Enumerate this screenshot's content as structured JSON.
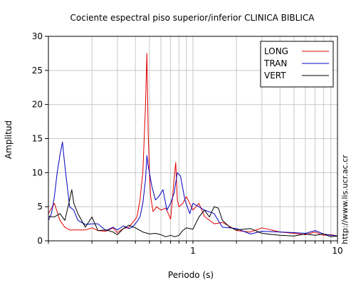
{
  "chart_data": {
    "type": "line",
    "title": "Cociente espectral piso superior/inferior  CLINICA BIBLICA",
    "xlabel": "Periodo (s)",
    "ylabel": "Amplitud",
    "xscale": "log",
    "xlim": [
      0.1,
      10
    ],
    "ylim": [
      0,
      30
    ],
    "x_ticks": [
      1,
      10
    ],
    "x_tick_labels": [
      "1",
      "10"
    ],
    "y_ticks": [
      0,
      5,
      10,
      15,
      20,
      25,
      30
    ],
    "y_tick_labels": [
      "0",
      "5",
      "10",
      "15",
      "20",
      "25",
      "30"
    ],
    "grid": true,
    "legend_position": "top-right",
    "watermark": "http://www.lis.ucr.ac.cr",
    "series": [
      {
        "name": "LONG",
        "color": "#e00000",
        "x": [
          0.1,
          0.11,
          0.12,
          0.13,
          0.14,
          0.16,
          0.18,
          0.2,
          0.22,
          0.25,
          0.28,
          0.3,
          0.33,
          0.36,
          0.38,
          0.41,
          0.43,
          0.45,
          0.47,
          0.48,
          0.49,
          0.5,
          0.51,
          0.53,
          0.56,
          0.6,
          0.65,
          0.7,
          0.74,
          0.76,
          0.78,
          0.8,
          0.85,
          0.9,
          1.0,
          1.1,
          1.2,
          1.4,
          1.6,
          1.8,
          2.0,
          2.5,
          3.0,
          4.0,
          5.0,
          6.0,
          7.0,
          8.0,
          9.0,
          10.0
        ],
        "y": [
          4.0,
          5.5,
          3.0,
          2.0,
          1.6,
          1.6,
          1.6,
          1.9,
          1.5,
          1.4,
          1.9,
          1.2,
          1.8,
          2.0,
          2.6,
          3.5,
          6.0,
          10.0,
          20.0,
          27.5,
          16.0,
          10.0,
          6.5,
          4.3,
          5.0,
          4.5,
          4.8,
          3.2,
          9.0,
          11.5,
          6.0,
          5.0,
          5.5,
          6.5,
          4.5,
          5.5,
          3.6,
          2.5,
          2.7,
          2.1,
          1.5,
          1.3,
          1.9,
          1.3,
          1.1,
          0.9,
          1.3,
          0.8,
          0.9,
          0.7
        ]
      },
      {
        "name": "TRAN",
        "color": "#0000c0",
        "x": [
          0.1,
          0.105,
          0.11,
          0.115,
          0.12,
          0.125,
          0.13,
          0.135,
          0.14,
          0.15,
          0.16,
          0.18,
          0.2,
          0.22,
          0.25,
          0.28,
          0.3,
          0.33,
          0.36,
          0.38,
          0.41,
          0.43,
          0.45,
          0.47,
          0.48,
          0.49,
          0.5,
          0.52,
          0.55,
          0.58,
          0.62,
          0.66,
          0.7,
          0.74,
          0.78,
          0.82,
          0.88,
          0.95,
          1.0,
          1.1,
          1.2,
          1.4,
          1.6,
          1.8,
          2.0,
          2.5,
          3.0,
          4.0,
          5.0,
          6.0,
          7.0,
          8.0,
          9.0,
          10.0
        ],
        "y": [
          3.0,
          4.0,
          6.5,
          10.0,
          12.5,
          14.5,
          11.0,
          8.0,
          5.0,
          4.5,
          3.0,
          2.4,
          2.5,
          2.5,
          1.5,
          2.0,
          1.6,
          2.2,
          1.8,
          2.0,
          2.8,
          3.5,
          5.5,
          9.0,
          12.5,
          11.0,
          10.0,
          8.0,
          6.0,
          6.5,
          7.5,
          4.5,
          5.5,
          7.0,
          10.0,
          9.5,
          6.0,
          4.0,
          5.5,
          5.0,
          4.5,
          4.0,
          2.0,
          1.9,
          1.8,
          1.0,
          1.4,
          1.3,
          1.2,
          1.1,
          1.5,
          1.0,
          0.8,
          0.7
        ]
      },
      {
        "name": "VERT",
        "color": "#000000",
        "x": [
          0.1,
          0.11,
          0.12,
          0.13,
          0.14,
          0.145,
          0.15,
          0.16,
          0.18,
          0.2,
          0.22,
          0.25,
          0.28,
          0.3,
          0.33,
          0.36,
          0.4,
          0.45,
          0.5,
          0.55,
          0.6,
          0.65,
          0.7,
          0.75,
          0.8,
          0.85,
          0.9,
          1.0,
          1.1,
          1.2,
          1.3,
          1.4,
          1.5,
          1.6,
          1.8,
          2.0,
          2.5,
          3.0,
          4.0,
          5.0,
          6.0,
          7.0,
          8.0,
          9.0,
          10.0
        ],
        "y": [
          3.6,
          3.5,
          4.0,
          3.0,
          6.0,
          7.5,
          5.5,
          4.0,
          2.0,
          3.5,
          1.5,
          1.6,
          1.3,
          0.9,
          1.8,
          2.3,
          1.9,
          1.3,
          1.0,
          1.1,
          0.9,
          0.6,
          0.8,
          0.6,
          0.8,
          1.5,
          1.9,
          1.7,
          3.5,
          4.5,
          3.5,
          5.0,
          4.8,
          3.0,
          2.0,
          1.6,
          1.8,
          1.1,
          0.8,
          0.7,
          1.0,
          0.8,
          1.0,
          0.6,
          0.7
        ]
      }
    ]
  }
}
